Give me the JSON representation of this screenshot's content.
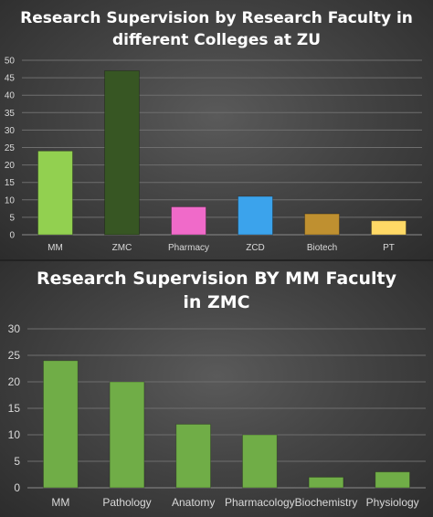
{
  "chart_data": [
    {
      "type": "bar",
      "title_lines": [
        "Research Supervision by Research Faculty in",
        "different Colleges at ZU"
      ],
      "categories": [
        "MM",
        "ZMC",
        "Pharmacy",
        "ZCD",
        "Biotech",
        "PT"
      ],
      "values": [
        24,
        47,
        8,
        11,
        6,
        4
      ],
      "colors": [
        "#92d050",
        "#375623",
        "#f06ac9",
        "#3ba3ec",
        "#bf9030",
        "#ffd966"
      ],
      "ylim": [
        0,
        50
      ],
      "yticks": [
        0,
        5,
        10,
        15,
        20,
        25,
        30,
        35,
        40,
        45,
        50
      ],
      "grid": true
    },
    {
      "type": "bar",
      "title_lines": [
        "Research Supervision BY MM Faculty",
        "in ZMC"
      ],
      "categories": [
        "MM",
        "Pathology",
        "Anatomy",
        "Pharmacology",
        "Biochemistry",
        "Physiology"
      ],
      "values": [
        24,
        20,
        12,
        10,
        2,
        3
      ],
      "colors": [
        "#70ad47",
        "#70ad47",
        "#70ad47",
        "#70ad47",
        "#70ad47",
        "#70ad47"
      ],
      "ylim": [
        0,
        30
      ],
      "yticks": [
        0,
        5,
        10,
        15,
        20,
        25,
        30
      ],
      "grid": true
    }
  ]
}
